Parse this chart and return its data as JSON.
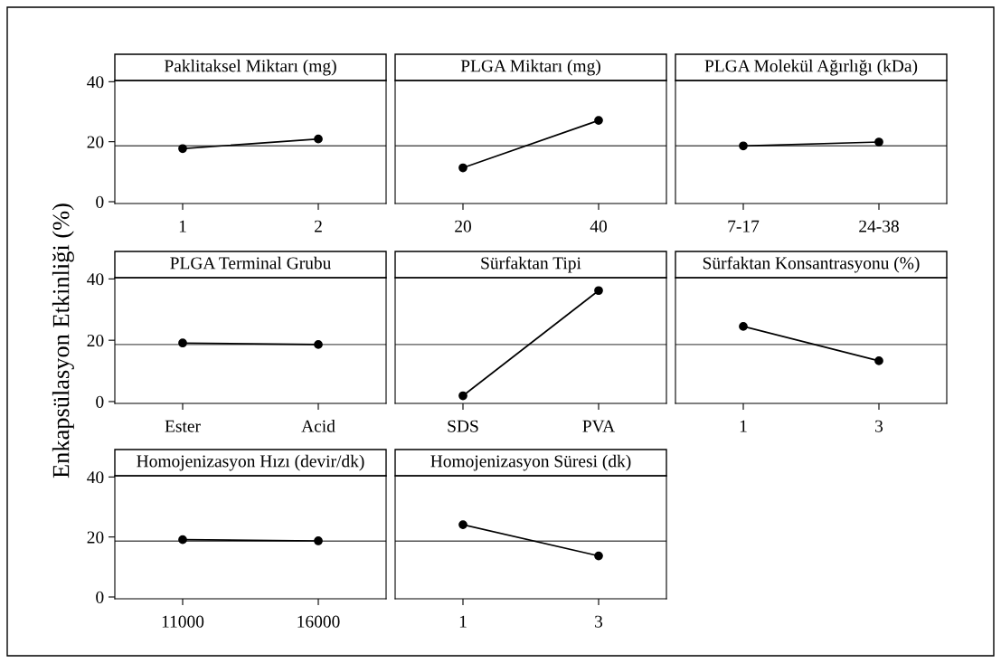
{
  "chart_data": [
    {
      "type": "line",
      "title": "Paklitaksel Miktarı (mg)",
      "categories": [
        "1",
        "2"
      ],
      "values": [
        17.7,
        20.9
      ],
      "color": "#000000",
      "marker": "circle",
      "line_style": "solid",
      "ylim": [
        -0.6,
        40.4
      ],
      "yticks": [
        0,
        20,
        40
      ],
      "grid": false,
      "ref_lines": [
        {
          "axis": "y",
          "value": 18.6,
          "color": "#555555"
        }
      ]
    },
    {
      "type": "line",
      "title": "PLGA Miktarı (mg)",
      "categories": [
        "20",
        "40"
      ],
      "values": [
        11.3,
        27.1
      ],
      "color": "#000000",
      "marker": "circle",
      "line_style": "solid",
      "ylim": [
        -0.6,
        40.4
      ],
      "yticks": [
        0,
        20,
        40
      ],
      "tick_labels": "x",
      "grid": false,
      "ref_lines": [
        {
          "axis": "y",
          "value": 18.6,
          "color": "#555555"
        }
      ]
    },
    {
      "type": "line",
      "title": "PLGA Molekül Ağırlığı (kDa)",
      "categories": [
        "7-17",
        "24-38"
      ],
      "values": [
        18.6,
        19.9
      ],
      "color": "#000000",
      "marker": "circle",
      "line_style": "solid",
      "ylim": [
        -0.6,
        40.4
      ],
      "yticks": [
        0,
        20,
        40
      ],
      "tick_labels": "x",
      "grid": false,
      "ref_lines": [
        {
          "axis": "y",
          "value": 18.6,
          "color": "#555555"
        }
      ]
    },
    {
      "type": "line",
      "title": "PLGA Terminal Grubu",
      "ylabel": "Enkapsülasyon Etkinliği (%)",
      "categories": [
        "Ester",
        "Acid"
      ],
      "values": [
        19.1,
        18.6
      ],
      "color": "#000000",
      "marker": "circle",
      "line_style": "solid",
      "ylim": [
        -0.6,
        40.4
      ],
      "yticks": [
        0,
        20,
        40
      ],
      "grid": false,
      "ref_lines": [
        {
          "axis": "y",
          "value": 18.6,
          "color": "#555555"
        }
      ]
    },
    {
      "type": "line",
      "title": "Sürfaktan Tipi",
      "categories": [
        "SDS",
        "PVA"
      ],
      "values": [
        1.9,
        36.2
      ],
      "color": "#000000",
      "marker": "circle",
      "line_style": "solid",
      "ylim": [
        -0.6,
        40.4
      ],
      "yticks": [
        0,
        20,
        40
      ],
      "tick_labels": "x",
      "grid": false,
      "ref_lines": [
        {
          "axis": "y",
          "value": 18.6,
          "color": "#555555"
        }
      ]
    },
    {
      "type": "line",
      "title": "Sürfaktan Konsantrasyonu (%)",
      "categories": [
        "1",
        "3"
      ],
      "values": [
        24.5,
        13.3
      ],
      "color": "#000000",
      "marker": "circle",
      "line_style": "solid",
      "ylim": [
        -0.6,
        40.4
      ],
      "yticks": [
        0,
        20,
        40
      ],
      "tick_labels": "x",
      "grid": false,
      "ref_lines": [
        {
          "axis": "y",
          "value": 18.6,
          "color": "#555555"
        }
      ]
    },
    {
      "type": "line",
      "title": "Homojenizasyon Hızı (devir/dk)",
      "categories": [
        "11000",
        "16000"
      ],
      "values": [
        19.1,
        18.7
      ],
      "color": "#000000",
      "marker": "circle",
      "line_style": "solid",
      "ylim": [
        -0.6,
        40.4
      ],
      "yticks": [
        0,
        20,
        40
      ],
      "grid": false,
      "ref_lines": [
        {
          "axis": "y",
          "value": 18.6,
          "color": "#555555"
        }
      ]
    },
    {
      "type": "line",
      "title": "Homojenizasyon Süresi (dk)",
      "categories": [
        "1",
        "3"
      ],
      "values": [
        24.1,
        13.7
      ],
      "color": "#000000",
      "marker": "circle",
      "line_style": "solid",
      "ylim": [
        -0.6,
        40.4
      ],
      "yticks": [
        0,
        20,
        40
      ],
      "tick_labels": "x",
      "grid": false,
      "ref_lines": [
        {
          "axis": "y",
          "value": 18.6,
          "color": "#555555"
        }
      ]
    }
  ]
}
